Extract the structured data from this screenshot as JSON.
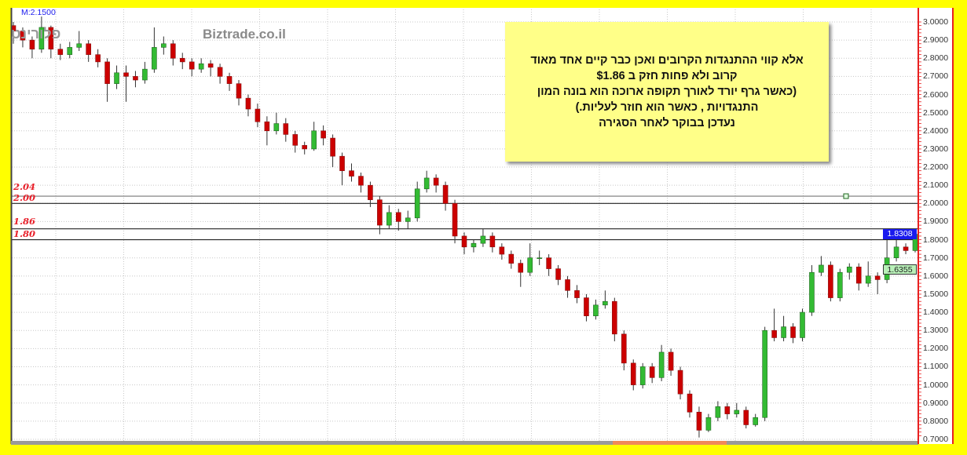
{
  "chart_data": {
    "type": "candlestick",
    "title": "",
    "xlabel": "",
    "ylabel": "",
    "ylim": [
      0.7,
      3.0
    ],
    "yticks": [
      "3.0000",
      "2.9000",
      "2.8000",
      "2.7000",
      "2.6000",
      "2.5000",
      "2.4000",
      "2.3000",
      "2.2000",
      "2.1000",
      "2.0000",
      "1.9000",
      "1.8000",
      "1.7000",
      "1.6000",
      "1.5000",
      "1.4000",
      "1.3000",
      "1.2000",
      "1.1000",
      "1.0000",
      "0.9000",
      "0.8000",
      "0.7000"
    ],
    "grid": true,
    "colors": {
      "up": "#33bb33",
      "down": "#cc0000",
      "last_price_tag": "#1a1aee",
      "second_tag": "#b8f0b8",
      "level_label": "#e8202a",
      "axis_border": "#e82020",
      "background_frame": "#ffff00"
    },
    "ohlc": [
      [
        2.98,
        3.0,
        2.88,
        2.95
      ],
      [
        2.95,
        2.97,
        2.86,
        2.9
      ],
      [
        2.9,
        2.92,
        2.8,
        2.85
      ],
      [
        2.85,
        3.03,
        2.83,
        2.97
      ],
      [
        2.97,
        2.98,
        2.8,
        2.85
      ],
      [
        2.85,
        2.88,
        2.79,
        2.82
      ],
      [
        2.82,
        2.89,
        2.8,
        2.86
      ],
      [
        2.86,
        2.95,
        2.84,
        2.88
      ],
      [
        2.88,
        2.9,
        2.78,
        2.82
      ],
      [
        2.82,
        2.85,
        2.75,
        2.78
      ],
      [
        2.78,
        2.8,
        2.56,
        2.66
      ],
      [
        2.66,
        2.76,
        2.63,
        2.72
      ],
      [
        2.72,
        2.76,
        2.56,
        2.7
      ],
      [
        2.7,
        2.73,
        2.64,
        2.68
      ],
      [
        2.68,
        2.78,
        2.66,
        2.74
      ],
      [
        2.74,
        2.97,
        2.72,
        2.86
      ],
      [
        2.86,
        2.92,
        2.82,
        2.88
      ],
      [
        2.88,
        2.9,
        2.76,
        2.8
      ],
      [
        2.8,
        2.83,
        2.74,
        2.78
      ],
      [
        2.78,
        2.8,
        2.7,
        2.74
      ],
      [
        2.74,
        2.8,
        2.72,
        2.77
      ],
      [
        2.77,
        2.79,
        2.7,
        2.75
      ],
      [
        2.75,
        2.77,
        2.66,
        2.7
      ],
      [
        2.7,
        2.72,
        2.62,
        2.66
      ],
      [
        2.66,
        2.68,
        2.54,
        2.58
      ],
      [
        2.58,
        2.6,
        2.48,
        2.52
      ],
      [
        2.52,
        2.55,
        2.42,
        2.45
      ],
      [
        2.45,
        2.48,
        2.32,
        2.4
      ],
      [
        2.4,
        2.5,
        2.38,
        2.44
      ],
      [
        2.44,
        2.47,
        2.34,
        2.38
      ],
      [
        2.38,
        2.4,
        2.28,
        2.32
      ],
      [
        2.32,
        2.34,
        2.27,
        2.3
      ],
      [
        2.3,
        2.45,
        2.29,
        2.4
      ],
      [
        2.4,
        2.43,
        2.32,
        2.36
      ],
      [
        2.36,
        2.38,
        2.2,
        2.26
      ],
      [
        2.26,
        2.28,
        2.1,
        2.18
      ],
      [
        2.18,
        2.22,
        2.12,
        2.15
      ],
      [
        2.15,
        2.17,
        2.06,
        2.1
      ],
      [
        2.1,
        2.12,
        1.98,
        2.02
      ],
      [
        2.02,
        2.04,
        1.83,
        1.88
      ],
      [
        1.88,
        1.99,
        1.86,
        1.95
      ],
      [
        1.95,
        1.97,
        1.85,
        1.9
      ],
      [
        1.9,
        1.96,
        1.86,
        1.92
      ],
      [
        1.92,
        2.12,
        1.9,
        2.08
      ],
      [
        2.08,
        2.18,
        2.06,
        2.14
      ],
      [
        2.14,
        2.16,
        2.06,
        2.1
      ],
      [
        2.1,
        2.12,
        1.96,
        2.0
      ],
      [
        2.0,
        2.02,
        1.78,
        1.82
      ],
      [
        1.82,
        1.84,
        1.72,
        1.76
      ],
      [
        1.76,
        1.8,
        1.73,
        1.78
      ],
      [
        1.78,
        1.86,
        1.76,
        1.82
      ],
      [
        1.82,
        1.84,
        1.73,
        1.76
      ],
      [
        1.76,
        1.78,
        1.69,
        1.72
      ],
      [
        1.72,
        1.74,
        1.64,
        1.67
      ],
      [
        1.67,
        1.69,
        1.54,
        1.62
      ],
      [
        1.62,
        1.78,
        1.6,
        1.7
      ],
      [
        1.7,
        1.74,
        1.66,
        1.7
      ],
      [
        1.7,
        1.72,
        1.6,
        1.64
      ],
      [
        1.64,
        1.66,
        1.55,
        1.58
      ],
      [
        1.58,
        1.6,
        1.48,
        1.52
      ],
      [
        1.52,
        1.55,
        1.45,
        1.48
      ],
      [
        1.48,
        1.5,
        1.35,
        1.38
      ],
      [
        1.38,
        1.47,
        1.36,
        1.44
      ],
      [
        1.44,
        1.52,
        1.42,
        1.46
      ],
      [
        1.46,
        1.48,
        1.24,
        1.28
      ],
      [
        1.28,
        1.3,
        1.08,
        1.12
      ],
      [
        1.12,
        1.14,
        0.97,
        1.0
      ],
      [
        1.0,
        1.12,
        0.98,
        1.1
      ],
      [
        1.1,
        1.12,
        1.01,
        1.04
      ],
      [
        1.04,
        1.22,
        1.02,
        1.18
      ],
      [
        1.18,
        1.2,
        1.05,
        1.08
      ],
      [
        1.08,
        1.1,
        0.92,
        0.95
      ],
      [
        0.95,
        0.97,
        0.82,
        0.85
      ],
      [
        0.85,
        0.88,
        0.71,
        0.75
      ],
      [
        0.75,
        0.84,
        0.74,
        0.82
      ],
      [
        0.82,
        0.91,
        0.8,
        0.88
      ],
      [
        0.88,
        0.9,
        0.81,
        0.84
      ],
      [
        0.84,
        0.9,
        0.82,
        0.86
      ],
      [
        0.86,
        0.88,
        0.76,
        0.78
      ],
      [
        0.78,
        0.84,
        0.77,
        0.82
      ],
      [
        0.82,
        1.32,
        0.8,
        1.3
      ],
      [
        1.3,
        1.42,
        1.24,
        1.26
      ],
      [
        1.26,
        1.38,
        1.24,
        1.32
      ],
      [
        1.32,
        1.34,
        1.23,
        1.26
      ],
      [
        1.26,
        1.42,
        1.24,
        1.4
      ],
      [
        1.4,
        1.66,
        1.38,
        1.62
      ],
      [
        1.62,
        1.71,
        1.6,
        1.66
      ],
      [
        1.66,
        1.68,
        1.46,
        1.48
      ],
      [
        1.48,
        1.64,
        1.46,
        1.62
      ],
      [
        1.62,
        1.67,
        1.58,
        1.65
      ],
      [
        1.65,
        1.67,
        1.52,
        1.56
      ],
      [
        1.56,
        1.68,
        1.54,
        1.6
      ],
      [
        1.6,
        1.62,
        1.5,
        1.58
      ],
      [
        1.58,
        1.8,
        1.56,
        1.7
      ],
      [
        1.7,
        1.8,
        1.68,
        1.76
      ],
      [
        1.76,
        1.78,
        1.72,
        1.74
      ],
      [
        1.74,
        1.86,
        1.73,
        1.83
      ]
    ],
    "horizontal_levels": [
      {
        "value": 2.04,
        "label": "2.04"
      },
      {
        "value": 2.0,
        "label": "2.00"
      },
      {
        "value": 1.86,
        "label": "1.86"
      },
      {
        "value": 1.8,
        "label": "1.80"
      }
    ],
    "marker": {
      "value": 2.04
    },
    "price_tags": [
      {
        "value": 1.8308,
        "label": "1.8308"
      },
      {
        "value": 1.6355,
        "label": "1.6355"
      }
    ],
    "max_label": "M:2.1500"
  },
  "watermarks": {
    "hebrew": "פלורינט",
    "site": "Biztrade.co.il"
  },
  "annotation": {
    "lines": [
      "אלא קווי  ההתנגדות  הקרובים  ואכן כבר קיים  אחד  מאוד",
      "קרוב ולא פחות חזק  ב $1.86",
      "(כאשר  גרף יורד  לאורך תקופה ארוכה  הוא בונה  המון",
      "התנגדויות , כאשר  הוא  חוזר  לעליות.)",
      "נעדכן בבוקר  לאחר  הסגירה"
    ]
  }
}
